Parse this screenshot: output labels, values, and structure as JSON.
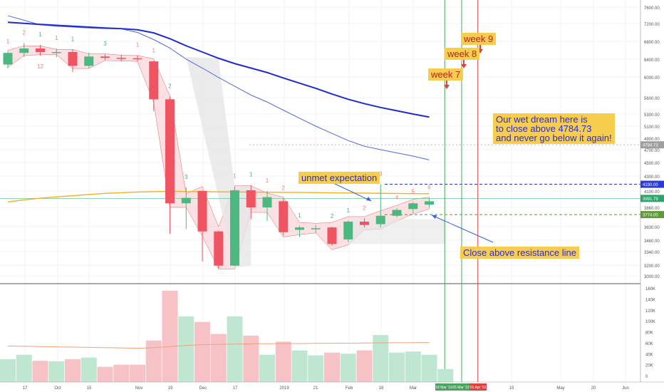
{
  "chart_data": {
    "type": "candlestick",
    "price_axis": {
      "ticks": [
        "7600.00",
        "7200.00",
        "6800.00",
        "6400.00",
        "6000.00",
        "5600.00",
        "5300.00",
        "5100.00",
        "4900.00",
        "4700.00",
        "4500.00",
        "4300.00",
        "4100.00",
        "3860.00",
        "3630.00",
        "3460.00",
        "3340.00",
        "3200.00",
        "3000.00"
      ],
      "tick_values": [
        7600,
        7200,
        6800,
        6400,
        6000,
        5600,
        5300,
        5100,
        4900,
        4700,
        4500,
        4300,
        4100,
        3860,
        3630,
        3460,
        3340,
        3200,
        3000
      ],
      "price_labels": [
        {
          "text": "4784.73",
          "value": 4784.73,
          "color": "#9e9e9e"
        },
        {
          "text": "4190.00",
          "value": 4190,
          "color": "#2a3ad6"
        },
        {
          "text": "3991.79",
          "value": 3991.79,
          "color": "#2ba36a"
        },
        {
          "text": "3774.00",
          "value": 3774,
          "color": "#5e9a3a"
        }
      ]
    },
    "volume_axis": {
      "ticks": [
        "160K",
        "140K",
        "120K",
        "100K",
        "80K",
        "60K",
        "40K",
        "20K",
        "0"
      ],
      "tick_values": [
        160000,
        140000,
        120000,
        100000,
        80000,
        60000,
        40000,
        20000,
        0
      ]
    },
    "time_axis": {
      "ticks": [
        "17",
        "Oct",
        "15",
        "Nov",
        "19",
        "Dec",
        "17",
        "2019",
        "21",
        "Feb",
        "18",
        "Mar",
        "15",
        "May",
        "20",
        "Jun"
      ],
      "badges": [
        {
          "text": "18 Mar '19",
          "color": "#4aa35e"
        },
        {
          "text": "25 Mar '19",
          "color": "#4aa35e"
        },
        {
          "text": "01 Apr '19",
          "color": "#e0403e"
        }
      ]
    },
    "weeks": [
      "2018-09-10",
      "2018-09-17",
      "2018-09-24",
      "2018-10-01",
      "2018-10-08",
      "2018-10-15",
      "2018-10-22",
      "2018-10-29",
      "2018-11-05",
      "2018-11-12",
      "2018-11-19",
      "2018-11-26",
      "2018-12-03",
      "2018-12-10",
      "2018-12-17",
      "2018-12-24",
      "2018-12-31",
      "2019-01-07",
      "2019-01-14",
      "2019-01-21",
      "2019-01-28",
      "2019-02-04",
      "2019-02-11",
      "2019-02-18",
      "2019-02-25",
      "2019-03-04",
      "2019-03-11"
    ],
    "candles": [
      [
        6280,
        6540,
        6190,
        6560
      ],
      [
        6540,
        6640,
        6450,
        6760
      ],
      [
        6640,
        6560,
        6480,
        6720
      ],
      [
        6560,
        6560,
        6440,
        6640
      ],
      [
        6560,
        6250,
        6110,
        6620
      ],
      [
        6250,
        6460,
        6200,
        6550
      ],
      [
        6460,
        6430,
        6380,
        6510
      ],
      [
        6430,
        6420,
        6350,
        6500
      ],
      [
        6420,
        6410,
        6340,
        6490
      ],
      [
        6350,
        5570,
        5350,
        6360
      ],
      [
        5570,
        3920,
        3540,
        5620
      ],
      [
        3920,
        4000,
        3600,
        4150
      ],
      [
        4100,
        3570,
        3240,
        4110
      ],
      [
        3570,
        3190,
        3130,
        3580
      ],
      [
        3190,
        4110,
        3180,
        4160
      ],
      [
        4110,
        3860,
        3720,
        4180
      ],
      [
        3860,
        4010,
        3700,
        4100
      ],
      [
        3950,
        3560,
        3520,
        3990
      ],
      [
        3590,
        3620,
        3500,
        3640
      ],
      [
        3610,
        3610,
        3550,
        3650
      ],
      [
        3620,
        3420,
        3400,
        3630
      ],
      [
        3470,
        3690,
        3440,
        3700
      ],
      [
        3690,
        3650,
        3620,
        3730
      ],
      [
        3660,
        3760,
        3620,
        4190
      ],
      [
        3760,
        3830,
        3740,
        3850
      ],
      [
        3840,
        3920,
        3790,
        3940
      ],
      [
        3900,
        3950,
        3860,
        4000
      ]
    ],
    "ma_long": [
      7230,
      7205,
      7180,
      7160,
      7140,
      7120,
      7100,
      7085,
      7060,
      6990,
      6860,
      6700,
      6560,
      6420,
      6300,
      6200,
      6100,
      5980,
      5880,
      5780,
      5670,
      5570,
      5490,
      5420,
      5360,
      5300,
      5250
    ],
    "ma_short": [
      7390,
      7280,
      7170,
      7140,
      7120,
      7100,
      7085,
      7080,
      7000,
      6840,
      6650,
      6400,
      6200,
      5990,
      5820,
      5650,
      5520,
      5370,
      5230,
      5100,
      4980,
      4860,
      4760,
      4700,
      4650,
      4600,
      4540
    ],
    "ma_slow": [
      3940,
      3970,
      3995,
      4015,
      4030,
      4050,
      4065,
      4075,
      4085,
      4090,
      4095,
      4092,
      4090,
      4088,
      4086,
      4084,
      4082,
      4080,
      4078,
      4076,
      4073,
      4071,
      4069,
      4066,
      4064,
      4062,
      4060
    ],
    "volume": [
      30000,
      38000,
      27000,
      26000,
      30000,
      33000,
      16000,
      20000,
      20000,
      64000,
      155000,
      108000,
      98000,
      76000,
      108000,
      73000,
      38000,
      62000,
      46000,
      37000,
      42000,
      40000,
      46000,
      74000,
      42000,
      44000,
      38000
    ],
    "volume_bar_last": 12000,
    "volume_ma": [
      54000,
      53500,
      53000,
      52500,
      52000,
      51500,
      51000,
      50500,
      50000,
      51000,
      53000,
      55000,
      56500,
      57000,
      57500,
      58000,
      58200,
      58400,
      58600,
      58800,
      59000,
      59200,
      59500,
      59800,
      60000,
      60200,
      60400
    ],
    "td_counts": [
      {
        "i": 0,
        "label": "1",
        "color": "#e87e7e",
        "pos": "above"
      },
      {
        "i": 1,
        "label": "2",
        "color": "#e87e7e",
        "pos": "above"
      },
      {
        "i": 2,
        "label": "1",
        "color": "#4cae7c",
        "pos": "above"
      },
      {
        "i": 2,
        "label": "12",
        "color": "#e87e7e",
        "pos": "below"
      },
      {
        "i": 3,
        "label": "1",
        "color": "#e87e7e",
        "pos": "above"
      },
      {
        "i": 4,
        "label": "1",
        "color": "#4cae7c",
        "pos": "above"
      },
      {
        "i": 6,
        "label": "3",
        "color": "#4cae7c",
        "pos": "above"
      },
      {
        "i": 8,
        "label": "1",
        "color": "#e87e7e",
        "pos": "above"
      },
      {
        "i": 9,
        "label": "1",
        "color": "#e87e7e",
        "pos": "above"
      },
      {
        "i": 10,
        "label": "2",
        "color": "#4cae7c",
        "pos": "above"
      },
      {
        "i": 11,
        "label": "3",
        "color": "#4cae7c",
        "pos": "above"
      },
      {
        "i": 14,
        "label": "1",
        "color": "#e87e7e",
        "pos": "above"
      },
      {
        "i": 15,
        "label": "1",
        "color": "#4cae7c",
        "pos": "above"
      },
      {
        "i": 16,
        "label": "1",
        "color": "#e87e7e",
        "pos": "above"
      },
      {
        "i": 17,
        "label": "2",
        "color": "#e87e7e",
        "pos": "above"
      },
      {
        "i": 18,
        "label": "1",
        "color": "#4cae7c",
        "pos": "above"
      },
      {
        "i": 20,
        "label": "2",
        "color": "#4cae7c",
        "pos": "above"
      },
      {
        "i": 21,
        "label": "1",
        "color": "#4cae7c",
        "pos": "above"
      },
      {
        "i": 22,
        "label": "2",
        "color": "#e87e7e",
        "pos": "above"
      },
      {
        "i": 23,
        "label": "3",
        "color": "#e87e7e",
        "pos": "above"
      },
      {
        "i": 24,
        "label": "4",
        "color": "#e87e7e",
        "pos": "above"
      },
      {
        "i": 25,
        "label": "5",
        "color": "#e87e7e",
        "pos": "above"
      },
      {
        "i": 26,
        "label": "6",
        "color": "#e87e7e",
        "pos": "above"
      }
    ],
    "vertical_markers": [
      {
        "date": "2019-03-18",
        "color": "#4aa35e"
      },
      {
        "date": "2019-03-25",
        "color": "#4aa35e"
      },
      {
        "date": "2019-04-01",
        "color": "#e0403e"
      }
    ],
    "horizontal_levels": [
      {
        "value": 4784.73,
        "color": "#bdbdbd",
        "style": "dotted"
      },
      {
        "value": 4190,
        "color": "#2a3ad6",
        "style": "dashed"
      },
      {
        "value": 3774,
        "color": "#5e9a3a",
        "style": "dashed"
      }
    ],
    "annotations": {
      "unmet": "unmet expectation",
      "close_above": "Close above resistance line",
      "dream": "Our wet dream here is\nto close above 4784.73\nand never go below it again!",
      "week7": "week 7",
      "week8": "week 8",
      "week9": "week 9"
    },
    "colors": {
      "up": "#4cb77f",
      "down": "#ef5462",
      "ma_long": "#1e2ccf",
      "ma_short": "#5566e0",
      "ma_slow": "#f2b01e",
      "callout_bg": "#f7cd4d",
      "callout_text": "#2b2bd4",
      "week_text": "#b0271d",
      "arrow": "#e0403e"
    }
  }
}
